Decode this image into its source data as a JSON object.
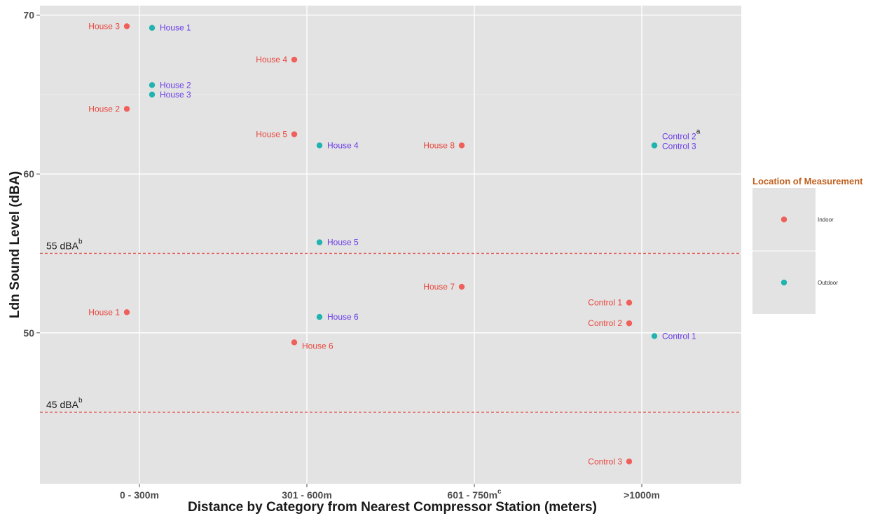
{
  "chart_data": {
    "type": "scatter",
    "xlabel": "Distance by Category from Nearest Compressor Station (meters)",
    "ylabel": "Ldn Sound Level (dBA)",
    "categories": [
      "0 - 300m",
      "301 - 600m",
      "601 - 750m",
      ">1000m"
    ],
    "category_superscripts": [
      "",
      "",
      "c",
      ""
    ],
    "y_ticks": [
      50,
      60,
      70
    ],
    "ylim": [
      40.5,
      70.6
    ],
    "grid": true,
    "reference_lines": [
      {
        "value": 55,
        "label": "55 dBA",
        "superscript": "b"
      },
      {
        "value": 45,
        "label": "45 dBA",
        "superscript": "b"
      }
    ],
    "legend": {
      "title": "Location of Measurement",
      "placement": "right",
      "entries": [
        {
          "name": "Indoor",
          "color": "#f0605a"
        },
        {
          "name": "Outdoor",
          "color": "#21b3b0"
        }
      ]
    },
    "label_colors": {
      "Indoor": "#e8453c",
      "Outdoor": "#6a3ce8"
    },
    "series": [
      {
        "name": "Indoor",
        "points": [
          {
            "category": "0 - 300m",
            "y": 69.3,
            "label": "House 3"
          },
          {
            "category": "0 - 300m",
            "y": 64.1,
            "label": "House 2"
          },
          {
            "category": "0 - 300m",
            "y": 51.3,
            "label": "House 1"
          },
          {
            "category": "301 - 600m",
            "y": 67.2,
            "label": "House 4"
          },
          {
            "category": "301 - 600m",
            "y": 62.5,
            "label": "House 5"
          },
          {
            "category": "301 - 600m",
            "y": 49.4,
            "label": "House 6"
          },
          {
            "category": "601 - 750m",
            "y": 61.8,
            "label": "House 8"
          },
          {
            "category": "601 - 750m",
            "y": 52.9,
            "label": "House 7"
          },
          {
            "category": ">1000m",
            "y": 51.9,
            "label": "Control 1"
          },
          {
            "category": ">1000m",
            "y": 50.6,
            "label": "Control 2"
          },
          {
            "category": ">1000m",
            "y": 41.9,
            "label": "Control 3"
          }
        ]
      },
      {
        "name": "Outdoor",
        "points": [
          {
            "category": "0 - 300m",
            "y": 69.2,
            "label": "House 1"
          },
          {
            "category": "0 - 300m",
            "y": 65.6,
            "label": "House 2"
          },
          {
            "category": "0 - 300m",
            "y": 65.0,
            "label": "House 3"
          },
          {
            "category": "301 - 600m",
            "y": 61.8,
            "label": "House 4"
          },
          {
            "category": "301 - 600m",
            "y": 55.7,
            "label": "House 5"
          },
          {
            "category": "301 - 600m",
            "y": 51.0,
            "label": "House 6"
          },
          {
            "category": ">1000m",
            "y": 61.8,
            "label": "Control 2",
            "superscript": "a"
          },
          {
            "category": ">1000m",
            "y": 61.8,
            "label": "Control 3"
          },
          {
            "category": ">1000m",
            "y": 49.8,
            "label": "Control 1"
          }
        ]
      }
    ]
  }
}
